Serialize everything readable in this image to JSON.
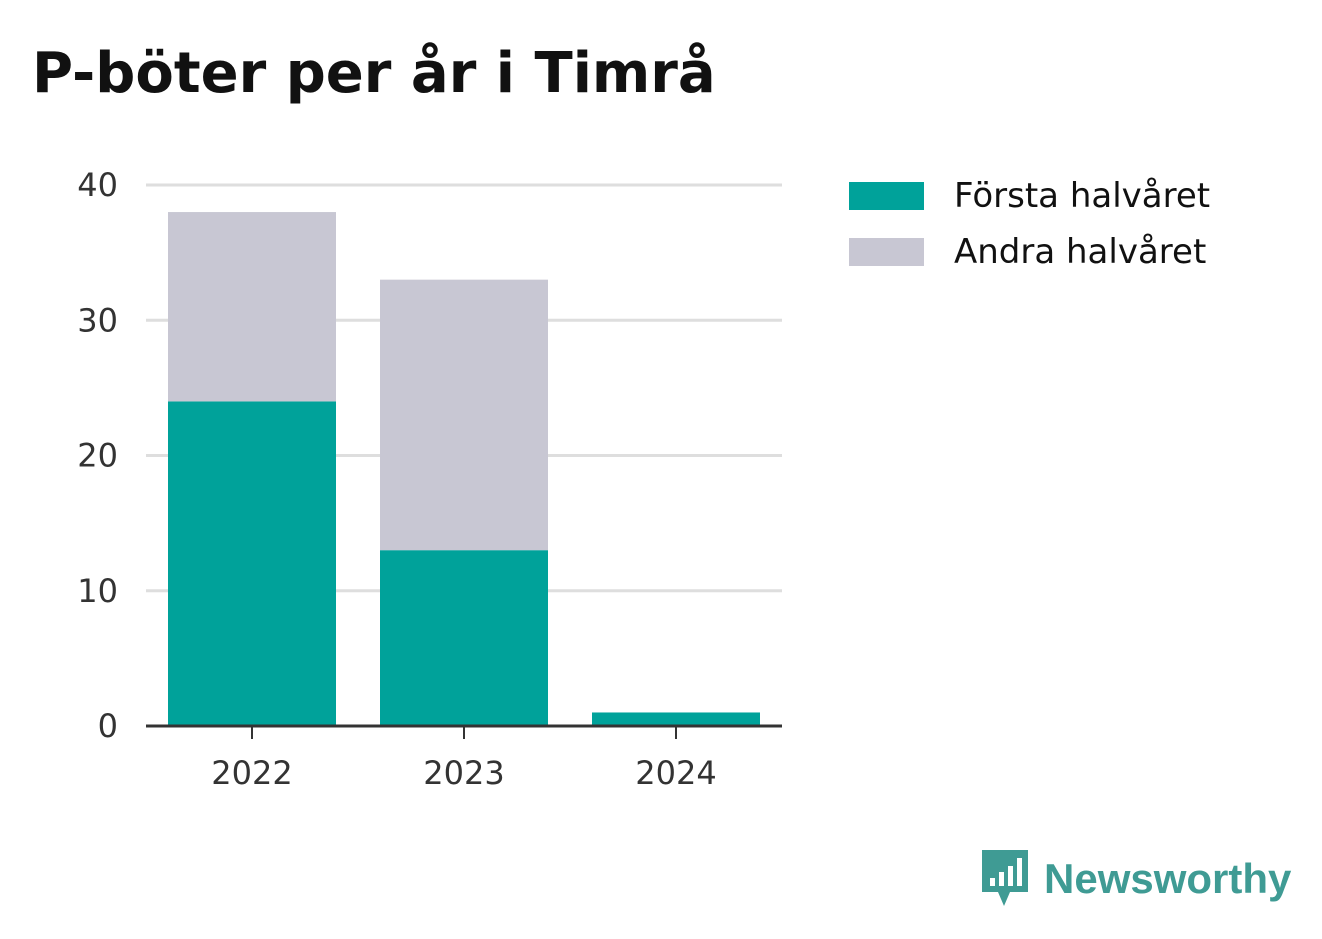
{
  "chart_data": {
    "type": "bar",
    "stacked": true,
    "title": "P-böter per år i Timrå",
    "xlabel": "",
    "ylabel": "",
    "categories": [
      "2022",
      "2023",
      "2024"
    ],
    "series": [
      {
        "name": "Första halvåret",
        "values": [
          24,
          13,
          1
        ],
        "color": "#00a29a"
      },
      {
        "name": "Andra halvåret",
        "values": [
          14,
          20,
          0
        ],
        "color": "#c8c7d3"
      }
    ],
    "ylim": [
      0,
      40
    ],
    "yticks": [
      "0",
      "10",
      "20",
      "30",
      "40"
    ],
    "grid": true,
    "legend_position": "top-right"
  },
  "branding": {
    "name": "Newsworthy",
    "logo_icon": "newsworthy-logo-icon",
    "color": "#3f9b94"
  }
}
